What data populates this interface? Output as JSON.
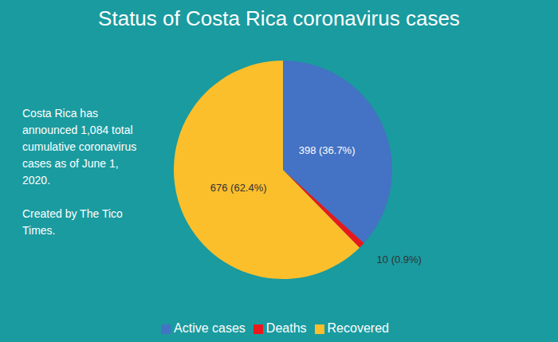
{
  "chart_data": {
    "type": "pie",
    "title": "Status of Costa Rica coronavirus cases",
    "annotations": [
      "Costa Rica has announced 1,084 total cumulative coronavirus cases as of June 1, 2020.",
      "Created by The Tico Times."
    ],
    "categories": [
      "Active cases",
      "Deaths",
      "Recovered"
    ],
    "values": [
      398,
      10,
      676
    ],
    "value_labels": [
      "398 (36.7%)",
      "10 (0.9%)",
      "676 (62.4%)"
    ],
    "colors": [
      "#4472c4",
      "#e8191c",
      "#fbbf2c"
    ],
    "data_labels": true,
    "legend": "bottom"
  }
}
